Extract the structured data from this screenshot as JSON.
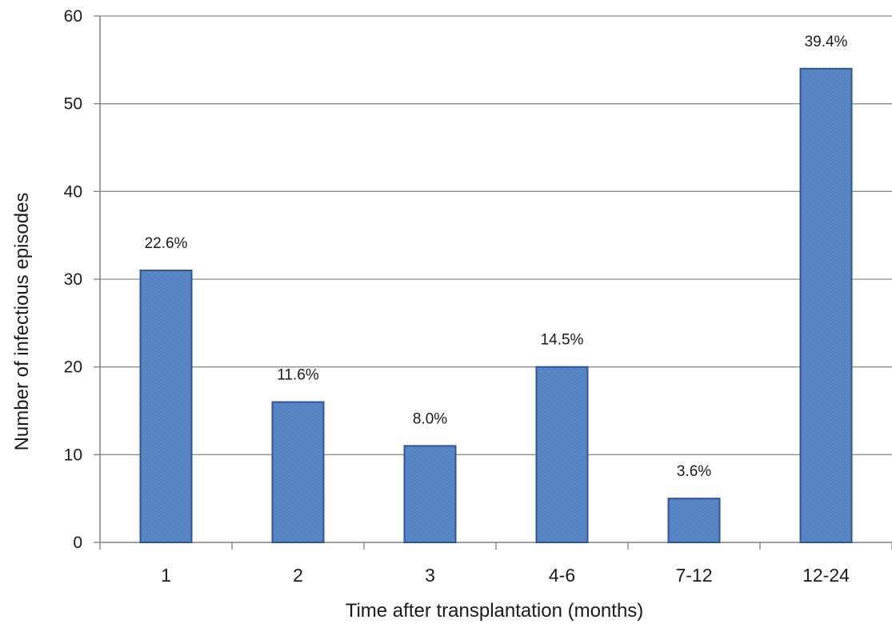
{
  "chart_data": {
    "type": "bar",
    "categories": [
      "1",
      "2",
      "3",
      "4-6",
      "7-12",
      "12-24"
    ],
    "values": [
      31,
      16,
      11,
      20,
      5,
      54
    ],
    "data_labels": [
      "22.6%",
      "11.6%",
      "8.0%",
      "14.5%",
      "3.6%",
      "39.4%"
    ],
    "xlabel": "Time after transplantation (months)",
    "ylabel": "Number of infectious episodes",
    "ylim": [
      0,
      60
    ],
    "yticks": [
      "0",
      "10",
      "20",
      "30",
      "40",
      "50",
      "60"
    ],
    "grid": true,
    "legend": "none",
    "colors": {
      "bar_fill": "#5b8ac8",
      "bar_stroke": "#2f5597",
      "grid": "#8c8c8c",
      "axis": "#808080"
    }
  }
}
